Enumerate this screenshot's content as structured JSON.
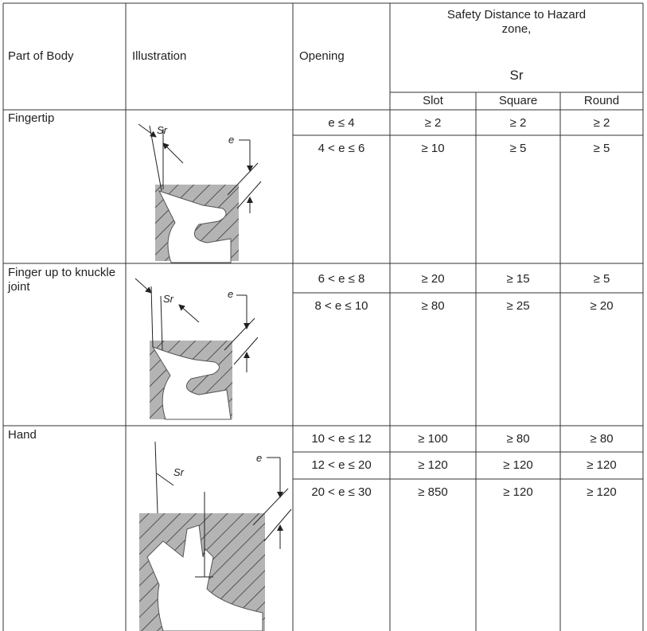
{
  "header": {
    "part": "Part of Body",
    "illustration": "Illustration",
    "opening": "Opening",
    "distance": "Safety Distance to Hazard zone,",
    "symbol": "Sr",
    "columns": [
      "Slot",
      "Square",
      "Round"
    ]
  },
  "groups": [
    {
      "part": "Fingertip",
      "illustration": {
        "sr": "Sr",
        "e": "e"
      },
      "rows": [
        [
          "e ≤ 4",
          "≥ 2",
          "≥ 2",
          "≥ 2"
        ],
        [
          "4 < e ≤ 6",
          "≥ 10",
          "≥ 5",
          "≥ 5"
        ]
      ]
    },
    {
      "part": "Finger up to knuckle joint",
      "illustration": {
        "sr": "Sr",
        "e": "e"
      },
      "rows": [
        [
          "6 < e ≤ 8",
          "≥ 20",
          "≥ 15",
          "≥ 5"
        ],
        [
          "8 < e ≤ 10",
          "≥ 80",
          "≥ 25",
          "≥ 20"
        ]
      ]
    },
    {
      "part": "Hand",
      "illustration": {
        "sr": "Sr",
        "e": "e"
      },
      "rows": [
        [
          "10 < e ≤ 12",
          "≥ 100",
          "≥ 80",
          "≥ 80"
        ],
        [
          "12 < e ≤ 20",
          "≥ 120",
          "≥ 120",
          "≥ 120"
        ],
        [
          "20 < e ≤ 30",
          "≥ 850",
          "≥ 120",
          "≥ 120"
        ]
      ]
    }
  ]
}
